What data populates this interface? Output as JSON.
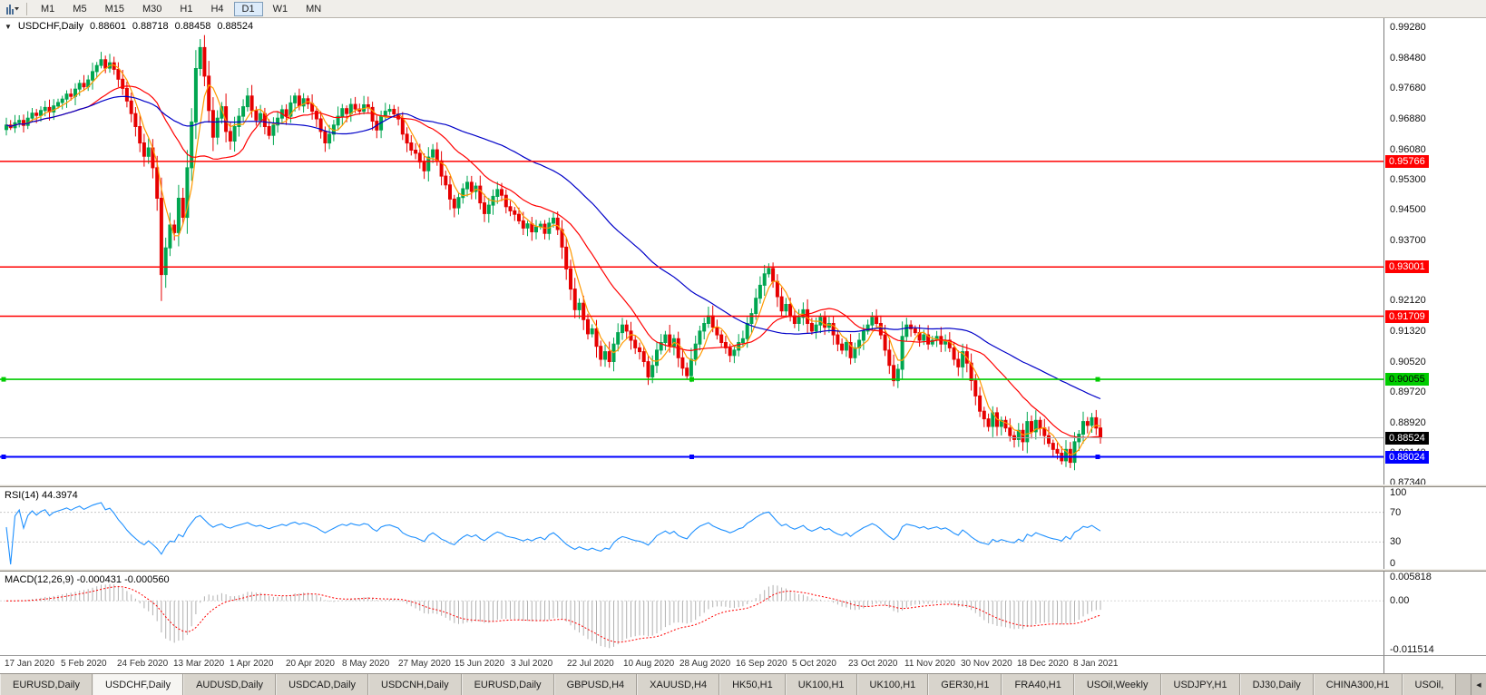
{
  "colors": {
    "up": "#00a650",
    "down": "#e60000",
    "ma_fast": "#ff9900",
    "ma_mid": "#ff0000",
    "ma_slow": "#0000c8",
    "rsi_line": "#1e90ff",
    "macd_hist": "#b0b0b0",
    "macd_signal": "#ff0000"
  },
  "toolbar": {
    "timeframes": [
      "M1",
      "M5",
      "M15",
      "M30",
      "H1",
      "H4",
      "D1",
      "W1",
      "MN"
    ],
    "selected": "D1"
  },
  "chart": {
    "collapse_icon": "▼",
    "symbol_title": "USDCHF,Daily",
    "ohlc": {
      "open": "0.88601",
      "high": "0.88718",
      "low": "0.88458",
      "close": "0.88524"
    },
    "price_scale": [
      "0.99280",
      "0.98480",
      "0.97680",
      "0.96880",
      "0.96080",
      "0.95300",
      "0.94500",
      "0.93700",
      "0.92920",
      "0.92120",
      "0.91320",
      "0.90520",
      "0.89720",
      "0.88920",
      "0.88140",
      "0.87340"
    ],
    "hlines": [
      {
        "price": 0.95766,
        "label": "0.95766",
        "color": "#ff0000",
        "text": "#ffffff",
        "width": 1.5,
        "selected": false
      },
      {
        "price": 0.93001,
        "label": "0.93001",
        "color": "#ff0000",
        "text": "#ffffff",
        "width": 1.5,
        "selected": false
      },
      {
        "price": 0.91709,
        "label": "0.91709",
        "color": "#ff0000",
        "text": "#ffffff",
        "width": 1.5,
        "selected": false
      },
      {
        "price": 0.90055,
        "label": "0.90055",
        "color": "#00cc00",
        "text": "#000000",
        "width": 1.6,
        "selected": true
      },
      {
        "price": 0.88024,
        "label": "0.88024",
        "color": "#0000ff",
        "text": "#ffffff",
        "width": 2,
        "selected": true
      }
    ],
    "current_price": {
      "value": 0.88524,
      "label": "0.88524",
      "bg": "#000000",
      "text": "#ffffff"
    },
    "dates": [
      "17 Jan 2020",
      "5 Feb 2020",
      "24 Feb 2020",
      "13 Mar 2020",
      "1 Apr 2020",
      "20 Apr 2020",
      "8 May 2020",
      "27 May 2020",
      "15 Jun 2020",
      "3 Jul 2020",
      "22 Jul 2020",
      "10 Aug 2020",
      "28 Aug 2020",
      "16 Sep 2020",
      "5 Oct 2020",
      "23 Oct 2020",
      "11 Nov 2020",
      "30 Nov 2020",
      "18 Dec 2020",
      "8 Jan 2021"
    ]
  },
  "rsi": {
    "label": "RSI(14) 44.3974",
    "period": 14,
    "value": 44.3974,
    "scale": [
      "100",
      "70",
      "30",
      "0"
    ],
    "levels": [
      70,
      30
    ]
  },
  "macd": {
    "label": "MACD(12,26,9) -0.000431 -0.000560",
    "fast": 12,
    "slow": 26,
    "signal": 9,
    "macd_value": -0.000431,
    "signal_value": -0.00056,
    "scale_max": "0.005818",
    "scale_zero": "0.00",
    "scale_min": "-0.011514",
    "max": 0.005818,
    "min": -0.011514
  },
  "tabs": {
    "items": [
      "EURUSD,Daily",
      "USDCHF,Daily",
      "AUDUSD,Daily",
      "USDCAD,Daily",
      "USDCNH,Daily",
      "EURUSD,Daily",
      "GBPUSD,H4",
      "XAUUSD,H4",
      "HK50,H1",
      "UK100,H1",
      "UK100,H1",
      "GER30,H1",
      "FRA40,H1",
      "USOil,Weekly",
      "USDJPY,H1",
      "DJ30,Daily",
      "CHINA300,H1",
      "USOil,"
    ],
    "active_index": 1,
    "scroll_left_icon": "◀"
  },
  "chart_data": {
    "type": "candlestick",
    "title": "USDCHF,Daily",
    "symbol": "USDCHF",
    "timeframe": "Daily",
    "y_range": [
      0.873,
      0.9952
    ],
    "x_range_labels": [
      "17 Jan 2020",
      "8 Jan 2021"
    ],
    "moving_averages": [
      {
        "period": 5,
        "color_key": "ma_fast"
      },
      {
        "period": 20,
        "color_key": "ma_mid"
      },
      {
        "period": 50,
        "color_key": "ma_slow"
      }
    ],
    "closes": [
      0.9672,
      0.9665,
      0.9678,
      0.9684,
      0.9671,
      0.969,
      0.9703,
      0.9697,
      0.971,
      0.9718,
      0.9706,
      0.9722,
      0.9731,
      0.974,
      0.9753,
      0.9747,
      0.9766,
      0.9781,
      0.9772,
      0.979,
      0.9812,
      0.9828,
      0.9843,
      0.9821,
      0.9835,
      0.9818,
      0.9792,
      0.9768,
      0.9735,
      0.9702,
      0.9668,
      0.9625,
      0.959,
      0.9612,
      0.956,
      0.948,
      0.928,
      0.935,
      0.941,
      0.939,
      0.948,
      0.943,
      0.956,
      0.968,
      0.982,
      0.9875,
      0.98,
      0.971,
      0.964,
      0.969,
      0.972,
      0.9655,
      0.963,
      0.9668,
      0.9695,
      0.972,
      0.9748,
      0.971,
      0.9685,
      0.9702,
      0.9668,
      0.9645,
      0.9672,
      0.969,
      0.9712,
      0.9695,
      0.973,
      0.9748,
      0.9722,
      0.9741,
      0.9728,
      0.9708,
      0.9688,
      0.9655,
      0.9625,
      0.9648,
      0.9672,
      0.9695,
      0.9715,
      0.9702,
      0.9726,
      0.9714,
      0.9708,
      0.9725,
      0.9718,
      0.9682,
      0.9659,
      0.9695,
      0.9708,
      0.9713,
      0.9701,
      0.9688,
      0.9648,
      0.9625,
      0.9606,
      0.9598,
      0.9575,
      0.9552,
      0.9588,
      0.9607,
      0.9578,
      0.9538,
      0.9515,
      0.9478,
      0.9455,
      0.9482,
      0.9505,
      0.9522,
      0.9498,
      0.9512,
      0.9468,
      0.944,
      0.9462,
      0.9485,
      0.9503,
      0.9488,
      0.9458,
      0.9447,
      0.9438,
      0.9421,
      0.9402,
      0.9413,
      0.9392,
      0.9405,
      0.9412,
      0.9388,
      0.9415,
      0.9428,
      0.9398,
      0.9352,
      0.9295,
      0.9242,
      0.9188,
      0.9205,
      0.9162,
      0.9125,
      0.9138,
      0.9092,
      0.9058,
      0.9078,
      0.9052,
      0.9098,
      0.9128,
      0.9148,
      0.9132,
      0.9108,
      0.9088,
      0.9078,
      0.9052,
      0.9012,
      0.9042,
      0.9082,
      0.9102,
      0.9122,
      0.9092,
      0.9112,
      0.9062,
      0.9035,
      0.9015,
      0.9058,
      0.9098,
      0.9132,
      0.9152,
      0.9172,
      0.9142,
      0.9122,
      0.9102,
      0.9088,
      0.9068,
      0.9082,
      0.9102,
      0.9112,
      0.9152,
      0.9178,
      0.9218,
      0.9252,
      0.9282,
      0.9296,
      0.9262,
      0.9222,
      0.9185,
      0.9202,
      0.9172,
      0.9152,
      0.9168,
      0.9188,
      0.9152,
      0.9132,
      0.9148,
      0.9168,
      0.9142,
      0.9152,
      0.9122,
      0.9098,
      0.9082,
      0.9102,
      0.9062,
      0.9088,
      0.9108,
      0.9132,
      0.9148,
      0.9168,
      0.9152,
      0.9122,
      0.9082,
      0.9042,
      0.9002,
      0.9032,
      0.9118,
      0.9148,
      0.9138,
      0.9128,
      0.9108,
      0.9122,
      0.9098,
      0.9108,
      0.9118,
      0.9098,
      0.9108,
      0.9088,
      0.9058,
      0.9038,
      0.9078,
      0.9048,
      0.9002,
      0.8962,
      0.8922,
      0.8902,
      0.8882,
      0.8918,
      0.8882,
      0.8898,
      0.8878,
      0.8858,
      0.8848,
      0.8872,
      0.8842,
      0.8895,
      0.8868,
      0.8898,
      0.8878,
      0.8858,
      0.8838,
      0.8822,
      0.8812,
      0.8792,
      0.8822,
      0.8788,
      0.8842,
      0.8862,
      0.8895,
      0.8885,
      0.8905,
      0.8878,
      0.8852
    ]
  }
}
